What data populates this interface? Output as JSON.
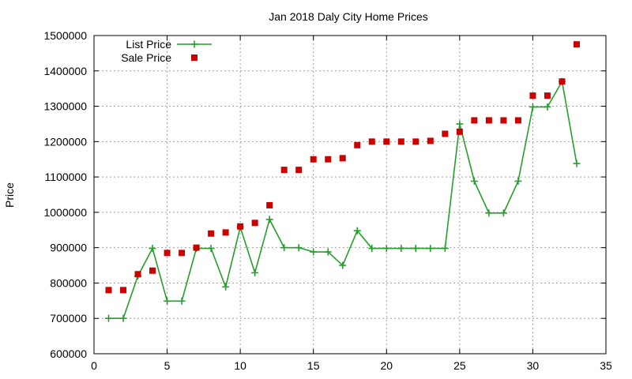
{
  "chart_data": {
    "type": "line",
    "title": "Jan 2018 Daly City Home Prices",
    "xlabel": "",
    "ylabel": "Price",
    "xlim": [
      0,
      35
    ],
    "ylim": [
      600000,
      1500000
    ],
    "xticks": [
      0,
      5,
      10,
      15,
      20,
      25,
      30,
      35
    ],
    "yticks": [
      600000,
      700000,
      800000,
      900000,
      1000000,
      1100000,
      1200000,
      1300000,
      1400000,
      1500000
    ],
    "grid": true,
    "legend_position": "top-left",
    "series": [
      {
        "name": "List Price",
        "style": "line-points",
        "marker": "plus",
        "color": "#22a02a",
        "x": [
          1,
          2,
          3,
          4,
          5,
          6,
          7,
          8,
          9,
          10,
          11,
          12,
          13,
          14,
          15,
          16,
          17,
          18,
          19,
          20,
          21,
          22,
          23,
          24,
          25,
          26,
          27,
          28,
          29,
          30,
          31,
          32,
          33
        ],
        "values": [
          700000,
          700000,
          820000,
          898000,
          749000,
          749000,
          898000,
          898000,
          789000,
          958000,
          829000,
          980000,
          900000,
          900000,
          888000,
          888000,
          850000,
          948000,
          898000,
          898000,
          898000,
          898000,
          898000,
          898000,
          1250000,
          1088000,
          998000,
          998000,
          1088000,
          1298000,
          1298000,
          1370000,
          1138000
        ]
      },
      {
        "name": "Sale Price",
        "style": "points",
        "marker": "square",
        "color": "#cc0000",
        "x": [
          1,
          2,
          3,
          4,
          5,
          6,
          7,
          8,
          9,
          10,
          11,
          12,
          13,
          14,
          15,
          16,
          17,
          18,
          19,
          20,
          21,
          22,
          23,
          24,
          25,
          26,
          27,
          28,
          29,
          30,
          31,
          32,
          33
        ],
        "values": [
          780000,
          780000,
          825000,
          835000,
          885000,
          885000,
          900000,
          940000,
          943000,
          960000,
          970000,
          1020000,
          1120000,
          1120000,
          1150000,
          1150000,
          1153000,
          1190000,
          1200000,
          1200000,
          1200000,
          1200000,
          1202000,
          1222000,
          1228000,
          1260000,
          1260000,
          1260000,
          1260000,
          1330000,
          1330000,
          1370000,
          1475000
        ]
      }
    ]
  }
}
